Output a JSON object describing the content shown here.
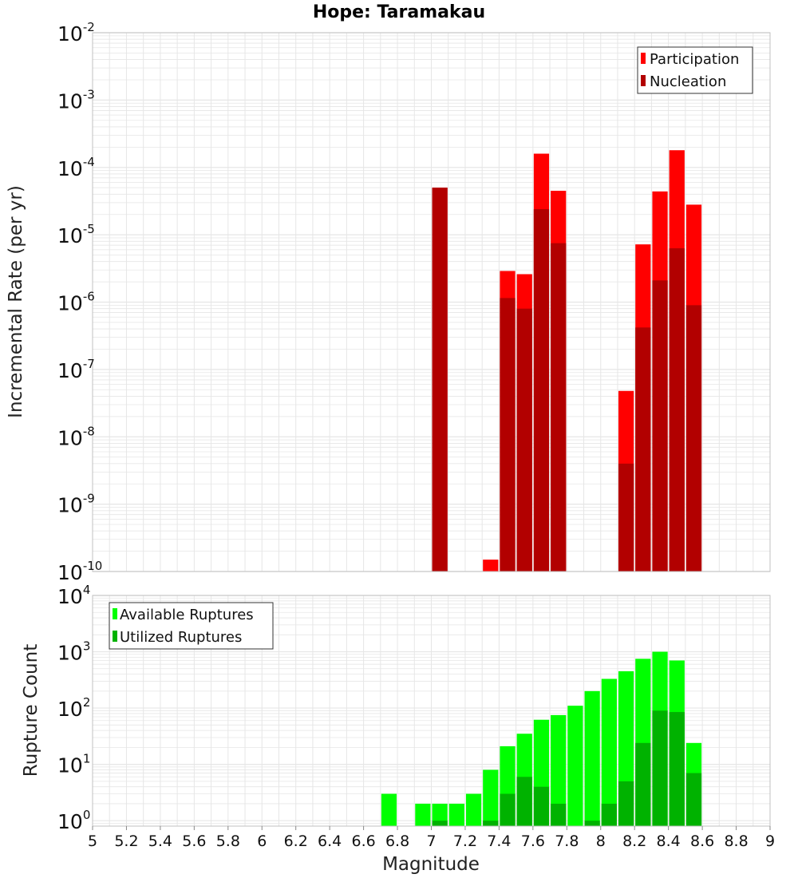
{
  "title": "Hope: Taramakau",
  "colors": {
    "participation": "#ff0000",
    "nucleation": "#b20000",
    "available": "#00ff00",
    "utilized": "#00b200",
    "grid": "#e6e6e6",
    "frame": "#c0c0c0"
  },
  "chart_data": [
    {
      "type": "bar",
      "title": "Hope: Taramakau",
      "ylabel": "Incremental Rate (per yr)",
      "xlabel": "",
      "y_scale": "log",
      "ylim": [
        1e-10,
        0.01
      ],
      "xlim": [
        5,
        9
      ],
      "x": [
        7.05,
        7.35,
        7.45,
        7.55,
        7.65,
        7.75,
        8.15,
        8.25,
        8.35,
        8.45,
        8.55
      ],
      "series": [
        {
          "name": "Participation",
          "values": [
            5e-05,
            1.5e-10,
            2.9e-06,
            2.6e-06,
            0.00016,
            4.5e-05,
            4.8e-08,
            7.2e-06,
            4.4e-05,
            0.00018,
            2.8e-05
          ]
        },
        {
          "name": "Nucleation",
          "values": [
            5e-05,
            null,
            1.15e-06,
            8e-07,
            2.4e-05,
            7.5e-06,
            4e-09,
            4.2e-07,
            2.1e-06,
            6.3e-06,
            9e-07
          ]
        }
      ],
      "legend": "top-right",
      "grid": true
    },
    {
      "type": "bar",
      "title": "",
      "ylabel": "Rupture Count",
      "xlabel": "Magnitude",
      "y_scale": "log",
      "ylim": [
        0.8,
        10000
      ],
      "xlim": [
        5,
        9
      ],
      "x_ticks": [
        "5",
        "5.2",
        "5.4",
        "5.6",
        "5.8",
        "6",
        "6.2",
        "6.4",
        "6.6",
        "6.8",
        "7",
        "7.2",
        "7.4",
        "7.6",
        "7.8",
        "8",
        "8.2",
        "8.4",
        "8.6",
        "8.8",
        "9"
      ],
      "x": [
        6.75,
        6.95,
        7.05,
        7.15,
        7.25,
        7.35,
        7.45,
        7.55,
        7.65,
        7.75,
        7.85,
        7.95,
        8.05,
        8.15,
        8.25,
        8.35,
        8.45,
        8.55
      ],
      "series": [
        {
          "name": "Available Ruptures",
          "values": [
            3,
            2,
            2,
            2,
            3,
            8,
            21,
            35,
            62,
            75,
            110,
            200,
            330,
            450,
            750,
            1000,
            700,
            24
          ]
        },
        {
          "name": "Utilized Ruptures",
          "values": [
            null,
            null,
            1,
            null,
            null,
            1,
            3,
            6,
            4,
            2,
            null,
            1,
            2,
            5,
            24,
            90,
            85,
            7
          ]
        }
      ],
      "legend": "top-left",
      "grid": true
    }
  ]
}
